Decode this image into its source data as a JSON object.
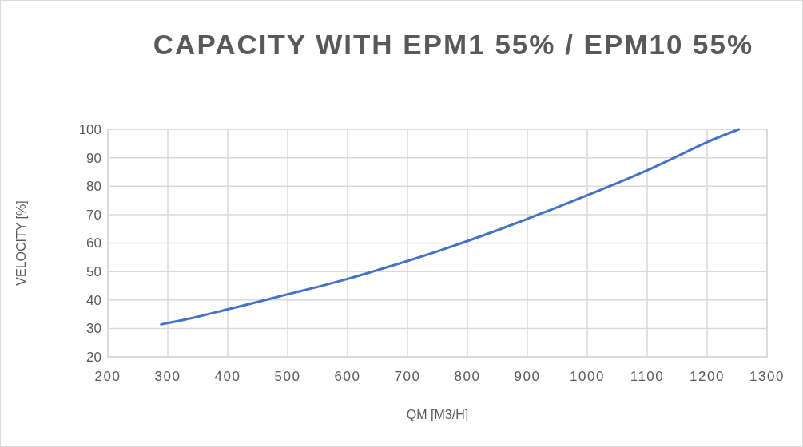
{
  "chart_data": {
    "type": "line",
    "title": "CAPACITY WITH EPM1 55% / EPM10 55%",
    "xlabel": "QM [M3/H]",
    "ylabel": "VELOCITY [%]",
    "series": [
      {
        "color": "#4472c4",
        "x": [
          289,
          350,
          400,
          450,
          500,
          550,
          600,
          650,
          700,
          750,
          800,
          850,
          900,
          950,
          1000,
          1050,
          1100,
          1150,
          1200,
          1253
        ],
        "values": [
          31.4,
          34.1,
          36.7,
          39.3,
          42.0,
          44.6,
          47.4,
          50.5,
          53.7,
          57.1,
          60.7,
          64.5,
          68.5,
          72.6,
          76.8,
          81.1,
          85.6,
          90.5,
          95.5,
          100
        ]
      }
    ],
    "xlim": [
      200,
      1300
    ],
    "xticks": [
      200,
      300,
      400,
      500,
      600,
      700,
      800,
      900,
      1000,
      1100,
      1200,
      1300
    ],
    "ylim": [
      20,
      100
    ],
    "yticks": [
      20,
      30,
      40,
      50,
      60,
      70,
      80,
      90,
      100
    ],
    "grid": true,
    "marker": "none",
    "line_style": "solid"
  }
}
